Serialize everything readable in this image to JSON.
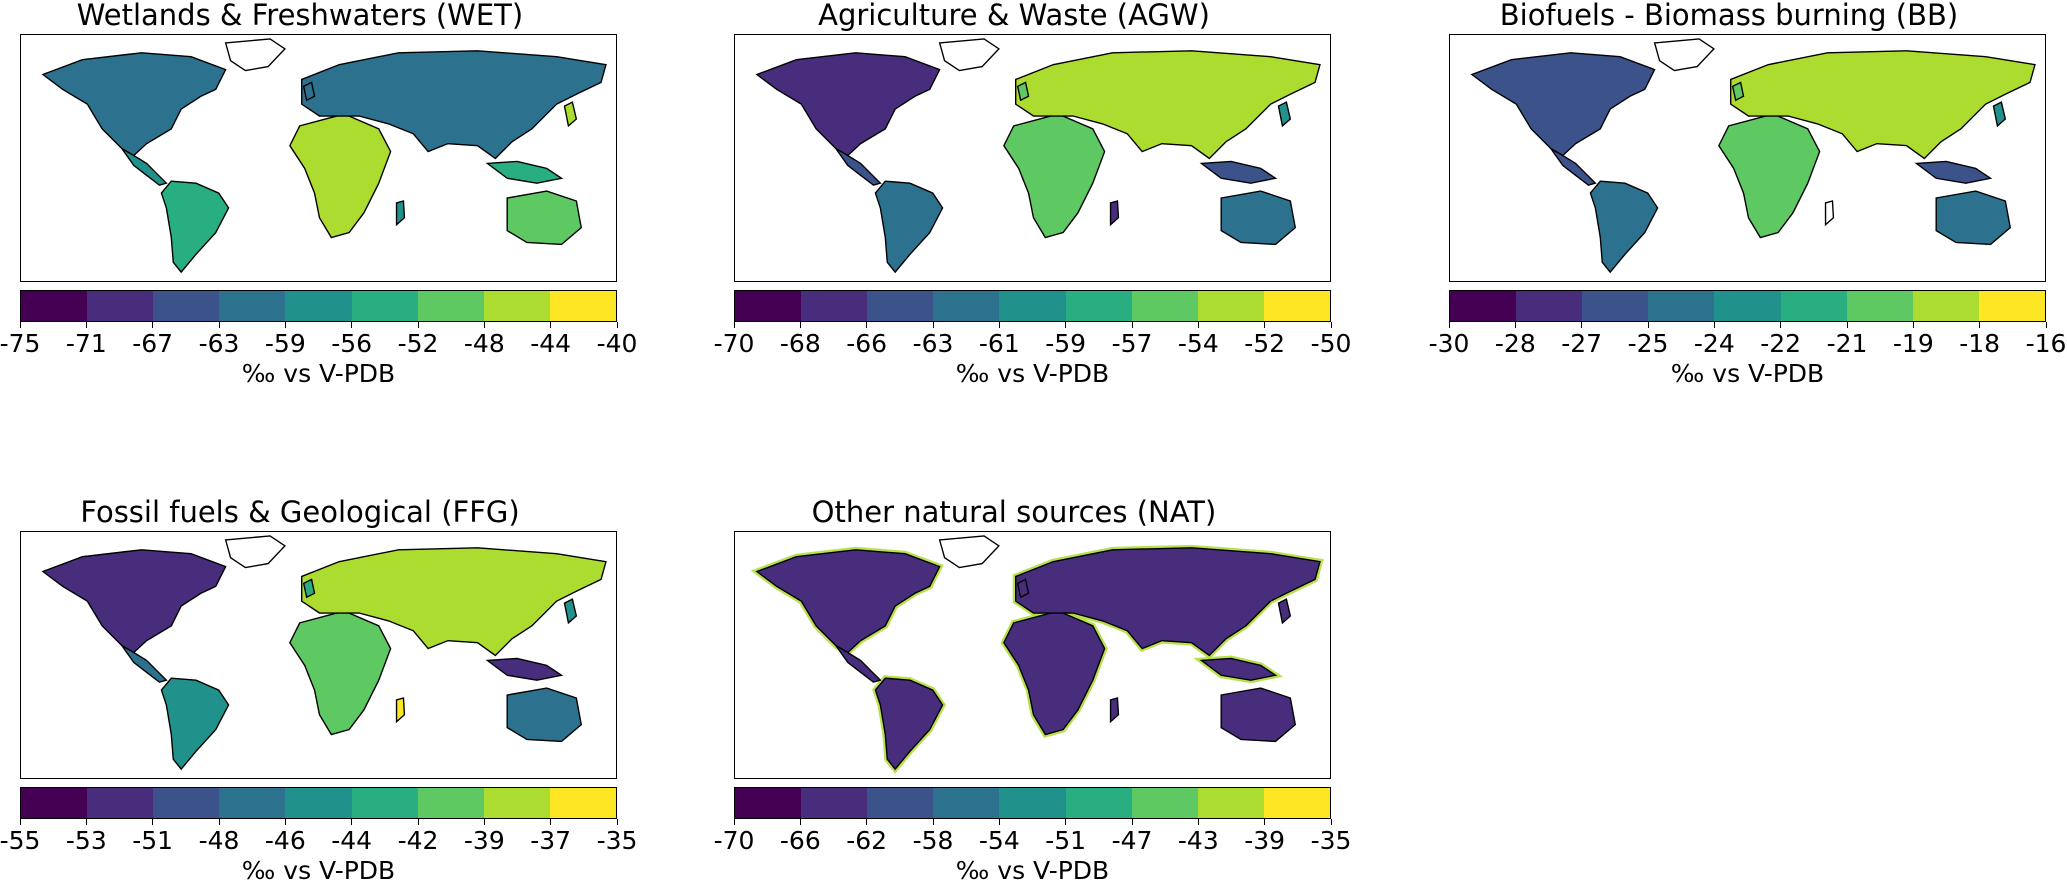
{
  "colormap": [
    "#440154",
    "#472d7b",
    "#3b528b",
    "#2c728e",
    "#21918c",
    "#28ae80",
    "#5ec962",
    "#addc30",
    "#fde725"
  ],
  "colors": {
    "land_outline": "#000000",
    "no_data": "#ffffff"
  },
  "chart_data": [
    {
      "type": "heatmap",
      "title": "Wetlands & Freshwaters (WET)",
      "colorbar_label": "‰ vs V-PDB",
      "colorbar_ticks": [
        "-75",
        "-71",
        "-67",
        "-63",
        "-59",
        "-56",
        "-52",
        "-48",
        "-44",
        "-40"
      ],
      "dominant_levels": [
        3,
        4,
        5,
        6,
        7
      ]
    },
    {
      "type": "heatmap",
      "title": "Agriculture & Waste (AGW)",
      "colorbar_label": "‰ vs V-PDB",
      "colorbar_ticks": [
        "-70",
        "-68",
        "-66",
        "-63",
        "-61",
        "-59",
        "-57",
        "-54",
        "-52",
        "-50"
      ],
      "dominant_levels": [
        1,
        2,
        3,
        4,
        6,
        7
      ]
    },
    {
      "type": "heatmap",
      "title": "Biofuels - Biomass burning (BB)",
      "colorbar_label": "‰ vs V-PDB",
      "colorbar_ticks": [
        "-30",
        "-28",
        "-27",
        "-25",
        "-24",
        "-22",
        "-21",
        "-19",
        "-18",
        "-16"
      ],
      "dominant_levels": [
        2,
        2,
        3,
        4,
        6,
        7
      ]
    },
    {
      "type": "heatmap",
      "title": "Fossil fuels & Geological (FFG)",
      "colorbar_label": "‰ vs V-PDB",
      "colorbar_ticks": [
        "-55",
        "-53",
        "-51",
        "-48",
        "-46",
        "-44",
        "-42",
        "-39",
        "-37",
        "-35"
      ],
      "dominant_levels": [
        1,
        3,
        4,
        5,
        6,
        7,
        8
      ]
    },
    {
      "type": "heatmap",
      "title": "Other natural sources (NAT)",
      "colorbar_label": "‰ vs V-PDB",
      "colorbar_ticks": [
        "-70",
        "-66",
        "-62",
        "-58",
        "-54",
        "-51",
        "-47",
        "-43",
        "-39",
        "-35"
      ],
      "dominant_levels": [
        1,
        7
      ]
    }
  ]
}
